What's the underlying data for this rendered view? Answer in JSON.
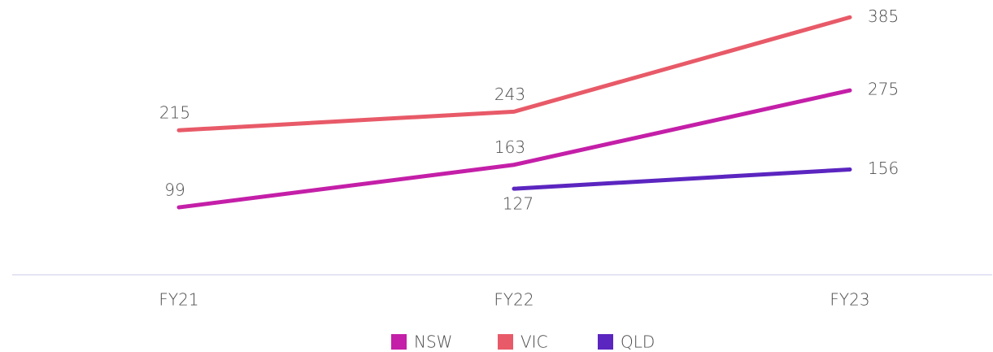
{
  "chart_data": {
    "type": "line",
    "categories": [
      "FY21",
      "FY22",
      "FY23"
    ],
    "series": [
      {
        "name": "NSW",
        "color": "#c41fa8",
        "values": [
          99,
          163,
          275
        ]
      },
      {
        "name": "VIC",
        "color": "#e85a68",
        "values": [
          215,
          243,
          385
        ]
      },
      {
        "name": "QLD",
        "color": "#5b25c0",
        "values": [
          null,
          127,
          156
        ]
      }
    ],
    "ylim": [
      0,
      400
    ]
  }
}
